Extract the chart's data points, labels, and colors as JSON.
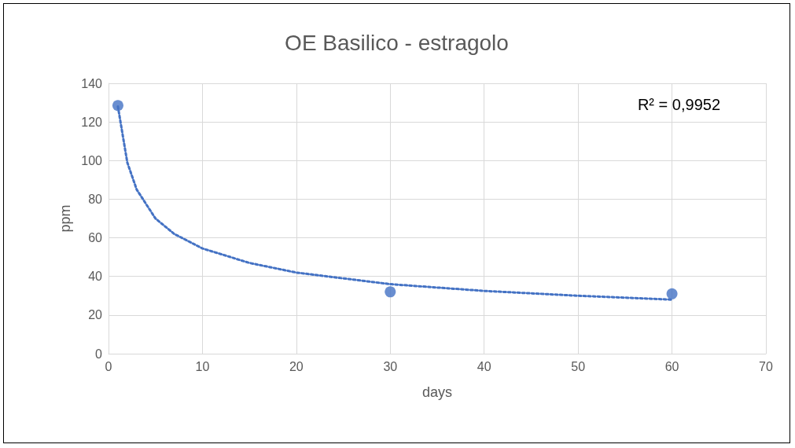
{
  "chart_data": {
    "type": "scatter",
    "title": "OE Basilico - estragolo",
    "xlabel": "days",
    "ylabel": "ppm",
    "xlim": [
      0,
      70
    ],
    "xticks": [
      0,
      10,
      20,
      30,
      40,
      50,
      60,
      70
    ],
    "ylim": [
      0,
      140
    ],
    "yticks": [
      0,
      20,
      40,
      60,
      80,
      100,
      120,
      140
    ],
    "grid": true,
    "annotations": [
      "R² = 0,9952"
    ],
    "series": [
      {
        "type": "scatter",
        "color": "#4472c4",
        "marker": "circle",
        "x": [
          1,
          30,
          60
        ],
        "values": [
          128.5,
          32,
          31
        ]
      },
      {
        "type": "line",
        "color": "#4472c4",
        "marker": "none",
        "line_style": "dotted",
        "x": [
          1,
          2,
          3,
          5,
          7,
          10,
          15,
          20,
          30,
          40,
          50,
          60
        ],
        "values": [
          128,
          99,
          85,
          70,
          62,
          54.5,
          47,
          42,
          36,
          32.5,
          30,
          28
        ]
      }
    ]
  }
}
